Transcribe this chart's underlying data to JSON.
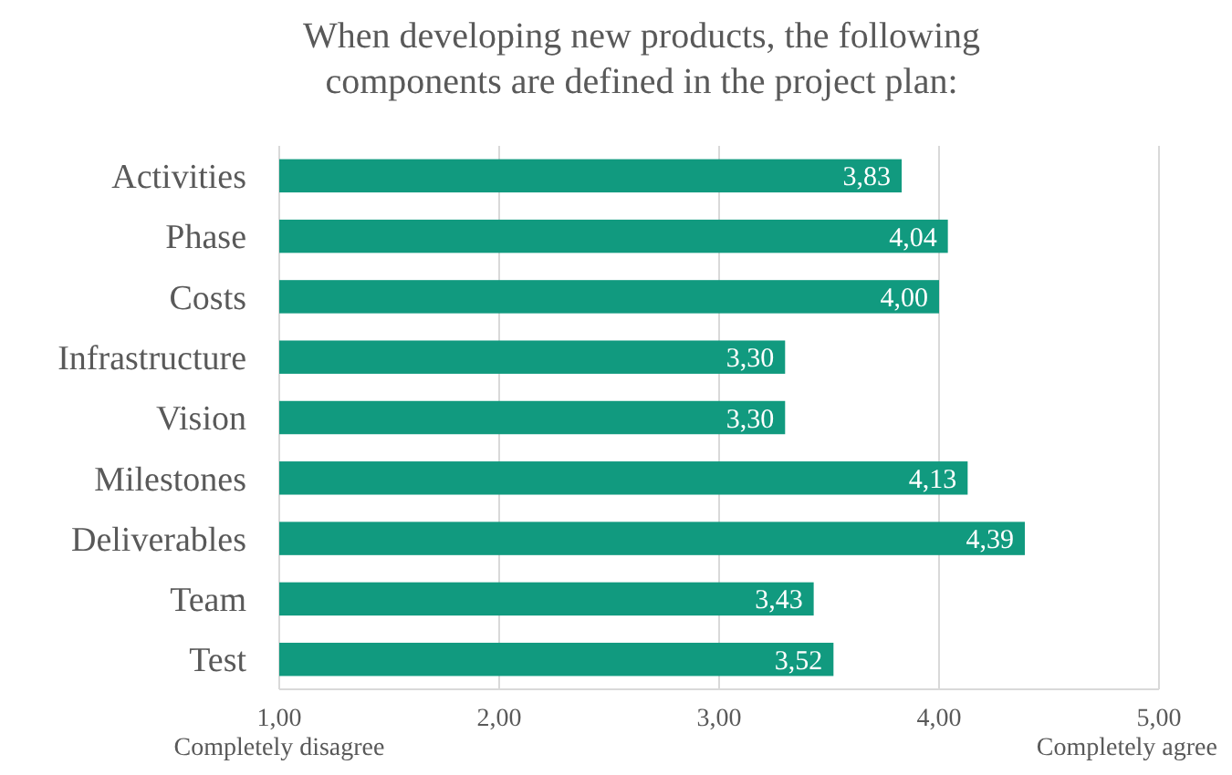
{
  "chart_data": {
    "type": "bar",
    "orientation": "horizontal",
    "title": "When developing new products, the following components are defined in the project plan:",
    "categories": [
      "Activities",
      "Phase",
      "Costs",
      "Infrastructure",
      "Vision",
      "Milestones",
      "Deliverables",
      "Team",
      "Test"
    ],
    "values": [
      3.83,
      4.04,
      4.0,
      3.3,
      3.3,
      4.13,
      4.39,
      3.43,
      3.52
    ],
    "value_labels": [
      "3,83",
      "4,04",
      "4,00",
      "3,30",
      "3,30",
      "4,13",
      "4,39",
      "3,43",
      "3,52"
    ],
    "color": "#119a7f",
    "xlim": [
      1,
      5
    ],
    "xticks": [
      {
        "value": 1,
        "label": "1,00"
      },
      {
        "value": 2,
        "label": "2,00"
      },
      {
        "value": 3,
        "label": "3,00"
      },
      {
        "value": 4,
        "label": "4,00"
      },
      {
        "value": 5,
        "label": "5,00"
      }
    ],
    "grid": "x",
    "annotations": [
      "Completely disagree",
      "Completely agree"
    ]
  }
}
